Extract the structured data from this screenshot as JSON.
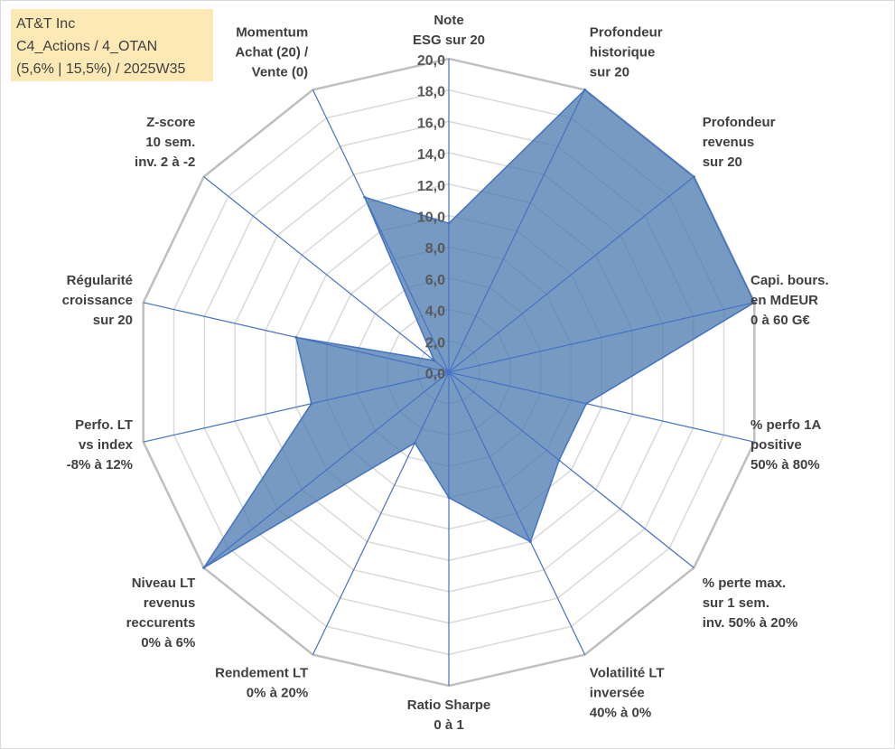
{
  "info_box": {
    "line1": "AT&T Inc",
    "line2": "C4_Actions / 4_OTAN",
    "line3": "(5,6% | 15,5%) / 2025W35"
  },
  "chart_data": {
    "type": "radar",
    "rmin": 0,
    "rmax": 20,
    "tick_step": 2,
    "tick_labels": [
      "0,0",
      "2,0",
      "4,0",
      "6,0",
      "8,0",
      "10,0",
      "12,0",
      "14,0",
      "16,0",
      "18,0",
      "20,0"
    ],
    "grid": true,
    "fill_color": "#4a78ad",
    "line_color": "#4472c4",
    "grid_color": "#bfbfbf",
    "categories": [
      [
        "Note",
        "ESG sur 20"
      ],
      [
        "Profondeur",
        "historique",
        "sur 20"
      ],
      [
        "Profondeur",
        "revenus",
        "sur 20"
      ],
      [
        "Capi. bours.",
        "en MdEUR",
        "0 à 60 G€"
      ],
      [
        "% perfo 1A",
        "positive",
        "50% à 80%"
      ],
      [
        "% perte max.",
        "sur 1 sem.",
        "inv. 50% à 20%"
      ],
      [
        "Volatilité LT",
        "inversée",
        "40% à 0%"
      ],
      [
        "Ratio Sharpe",
        "0 à 1"
      ],
      [
        "Rendement LT",
        "0% à 20%"
      ],
      [
        "Niveau LT",
        "revenus",
        "reccurents",
        "0% à 6%"
      ],
      [
        "Perfo. LT",
        "vs index",
        "-8% à 12%"
      ],
      [
        "Régularité",
        "croissance",
        "sur 20"
      ],
      [
        "Z-score",
        "10 sem.",
        "inv. 2 à -2"
      ],
      [
        "Momentum",
        "Achat (20) /",
        "Vente (0)"
      ]
    ],
    "values": [
      9.5,
      20,
      20,
      20,
      9,
      9,
      12,
      8,
      5,
      20,
      9,
      10,
      1.2,
      12.4
    ]
  }
}
